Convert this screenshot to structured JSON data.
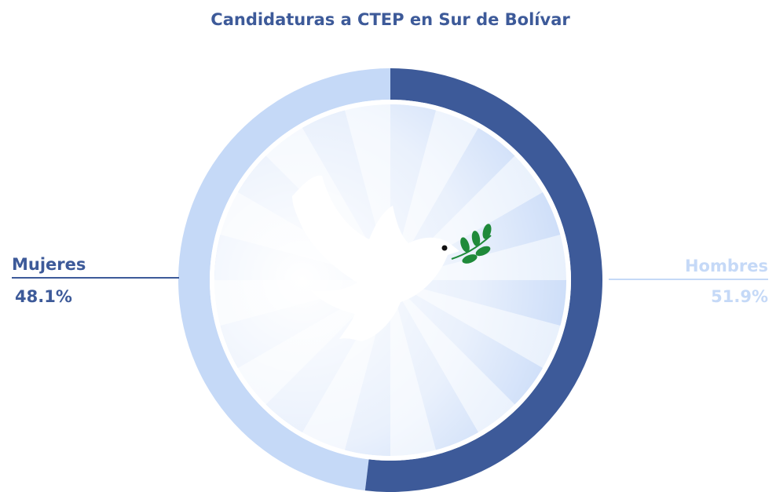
{
  "chart_data": {
    "type": "donut",
    "title": "Candidaturas a CTEP en Sur de Bolívar",
    "categories": [
      "Mujeres",
      "Hombres"
    ],
    "values": [
      48.1,
      51.9
    ],
    "value_labels": [
      "48.1%",
      "51.9%"
    ],
    "colors": [
      "#c5d9f7",
      "#3d5a99"
    ]
  }
}
